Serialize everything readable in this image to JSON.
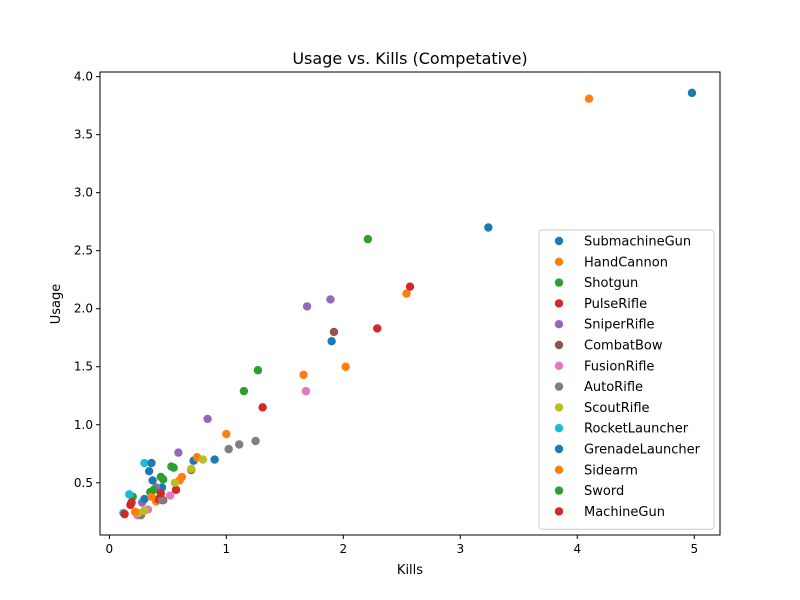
{
  "chart_data": {
    "type": "scatter",
    "title": "Usage vs. Kills (Competative)",
    "xlabel": "Kills",
    "ylabel": "Usage",
    "xlim": [
      -0.08,
      5.22
    ],
    "ylim": [
      0.05,
      4.04
    ],
    "xticks": [
      0,
      1,
      2,
      3,
      4,
      5
    ],
    "yticks": [
      0.5,
      1.0,
      1.5,
      2.0,
      2.5,
      3.0,
      3.5,
      4.0
    ],
    "xtick_labels": [
      "0",
      "1",
      "2",
      "3",
      "4",
      "5"
    ],
    "ytick_labels": [
      "0.5",
      "1.0",
      "1.5",
      "2.0",
      "2.5",
      "3.0",
      "3.5",
      "4.0"
    ],
    "grid": false,
    "legend_position": "lower-right",
    "series": [
      {
        "name": "SubmachineGun",
        "color": "#1f77b4",
        "points": [
          [
            4.98,
            3.86
          ],
          [
            3.24,
            2.7
          ],
          [
            1.9,
            1.72
          ],
          [
            0.9,
            0.7
          ],
          [
            0.72,
            0.69
          ],
          [
            0.45,
            0.46
          ],
          [
            0.34,
            0.6
          ]
        ]
      },
      {
        "name": "HandCannon",
        "color": "#ff7f0e",
        "points": [
          [
            4.1,
            3.81
          ],
          [
            2.54,
            2.13
          ],
          [
            2.02,
            1.5
          ],
          [
            1.66,
            1.43
          ],
          [
            1.0,
            0.92
          ],
          [
            0.75,
            0.72
          ],
          [
            0.6,
            0.52
          ],
          [
            0.4,
            0.34
          ]
        ]
      },
      {
        "name": "Shotgun",
        "color": "#2ca02c",
        "points": [
          [
            2.21,
            2.6
          ],
          [
            1.27,
            1.47
          ],
          [
            1.15,
            1.29
          ],
          [
            0.55,
            0.63
          ],
          [
            0.46,
            0.53
          ],
          [
            0.35,
            0.42
          ],
          [
            0.2,
            0.38
          ]
        ]
      },
      {
        "name": "PulseRifle",
        "color": "#d62728",
        "points": [
          [
            2.57,
            2.19
          ],
          [
            2.29,
            1.83
          ],
          [
            1.31,
            1.15
          ],
          [
            0.57,
            0.44
          ],
          [
            0.42,
            0.36
          ],
          [
            0.18,
            0.31
          ]
        ]
      },
      {
        "name": "SniperRifle",
        "color": "#9467bd",
        "points": [
          [
            1.89,
            2.08
          ],
          [
            1.69,
            2.02
          ],
          [
            0.84,
            1.05
          ],
          [
            0.59,
            0.76
          ],
          [
            0.4,
            0.46
          ],
          [
            0.28,
            0.33
          ]
        ]
      },
      {
        "name": "CombatBow",
        "color": "#8c564b",
        "points": [
          [
            1.92,
            1.8
          ],
          [
            0.7,
            0.61
          ],
          [
            0.46,
            0.35
          ]
        ]
      },
      {
        "name": "FusionRifle",
        "color": "#e377c2",
        "points": [
          [
            1.68,
            1.29
          ],
          [
            0.52,
            0.39
          ],
          [
            0.33,
            0.27
          ],
          [
            0.24,
            0.22
          ]
        ]
      },
      {
        "name": "AutoRifle",
        "color": "#7f7f7f",
        "points": [
          [
            1.25,
            0.86
          ],
          [
            1.11,
            0.83
          ],
          [
            1.02,
            0.79
          ],
          [
            0.45,
            0.35
          ],
          [
            0.27,
            0.22
          ]
        ]
      },
      {
        "name": "ScoutRifle",
        "color": "#bcbd22",
        "points": [
          [
            0.8,
            0.7
          ],
          [
            0.7,
            0.62
          ],
          [
            0.56,
            0.5
          ],
          [
            0.3,
            0.26
          ],
          [
            0.25,
            0.24
          ]
        ]
      },
      {
        "name": "RocketLauncher",
        "color": "#17becf",
        "points": [
          [
            0.3,
            0.67
          ],
          [
            0.17,
            0.4
          ],
          [
            0.12,
            0.24
          ]
        ]
      },
      {
        "name": "GrenadeLauncher",
        "color": "#1f77b4",
        "points": [
          [
            0.36,
            0.67
          ],
          [
            0.37,
            0.52
          ],
          [
            0.3,
            0.36
          ]
        ]
      },
      {
        "name": "Sidearm",
        "color": "#ff7f0e",
        "points": [
          [
            0.62,
            0.55
          ],
          [
            0.36,
            0.38
          ],
          [
            0.22,
            0.25
          ]
        ]
      },
      {
        "name": "Sword",
        "color": "#2ca02c",
        "points": [
          [
            0.53,
            0.64
          ],
          [
            0.44,
            0.55
          ],
          [
            0.38,
            0.44
          ]
        ]
      },
      {
        "name": "MachineGun",
        "color": "#d62728",
        "points": [
          [
            0.13,
            0.23
          ],
          [
            0.19,
            0.33
          ],
          [
            0.44,
            0.41
          ]
        ]
      }
    ]
  }
}
